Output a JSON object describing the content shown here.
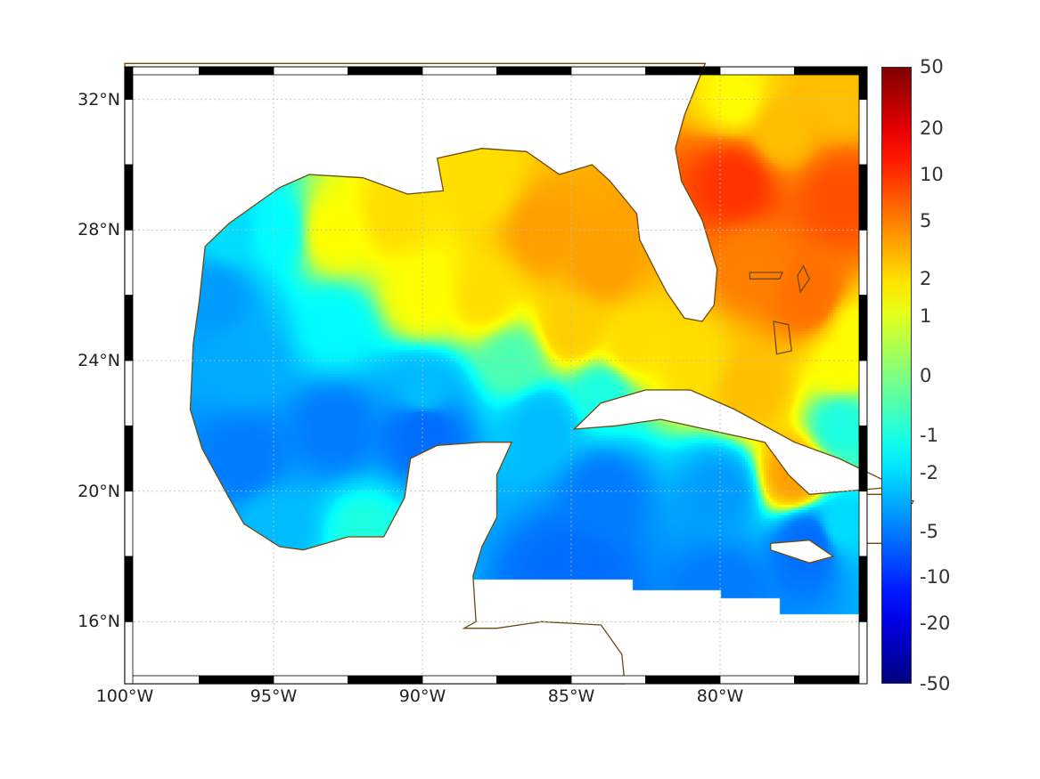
{
  "map": {
    "extent": {
      "lon_min": -100,
      "lon_max": -75.06,
      "lat_min": 14.1,
      "lat_max": 33.0
    },
    "lat_ticks": [
      {
        "value": 32,
        "label": "32°N"
      },
      {
        "value": 28,
        "label": "28°N"
      },
      {
        "value": 24,
        "label": "24°N"
      },
      {
        "value": 20,
        "label": "20°N"
      },
      {
        "value": 16,
        "label": "16°N"
      }
    ],
    "lon_ticks": [
      {
        "value": -100,
        "label": "100°W"
      },
      {
        "value": -95,
        "label": "95°W"
      },
      {
        "value": -90,
        "label": "90°W"
      },
      {
        "value": -85,
        "label": "85°W"
      },
      {
        "value": -80,
        "label": "80°W"
      }
    ],
    "coastline_color": "#6b4a12",
    "field_samples": [
      [
        -76,
        29,
        8
      ],
      [
        -78,
        31,
        3
      ],
      [
        -79.5,
        29.5,
        10
      ],
      [
        -77,
        26,
        6
      ],
      [
        -79,
        27,
        5
      ],
      [
        -76,
        32,
        3
      ],
      [
        -79.5,
        32,
        1.5
      ],
      [
        -86,
        28,
        4
      ],
      [
        -84,
        27,
        4
      ],
      [
        -88,
        29.5,
        2
      ],
      [
        -91,
        28.5,
        2
      ],
      [
        -93,
        28,
        1.5
      ],
      [
        -95,
        28,
        -1.5
      ],
      [
        -97,
        26,
        -4
      ],
      [
        -96,
        24,
        -3.5
      ],
      [
        -93,
        25,
        -1.5
      ],
      [
        -90,
        26,
        1.5
      ],
      [
        -88,
        26,
        2
      ],
      [
        -85,
        25,
        2.5
      ],
      [
        -83,
        24.5,
        2
      ],
      [
        -87,
        24,
        -0.5
      ],
      [
        -90,
        23,
        -3
      ],
      [
        -93,
        22,
        -5
      ],
      [
        -96,
        21,
        -5
      ],
      [
        -95,
        19,
        -3
      ],
      [
        -90,
        22,
        -6
      ],
      [
        -86,
        22,
        -3
      ],
      [
        -84,
        23,
        -1
      ],
      [
        -81,
        24,
        2
      ],
      [
        -79,
        23.2,
        3
      ],
      [
        -76,
        22,
        -1
      ],
      [
        -84,
        20,
        -5
      ],
      [
        -80,
        20,
        -4
      ],
      [
        -77,
        18.5,
        -6
      ],
      [
        -85,
        17.5,
        -6
      ],
      [
        -80,
        17,
        -5
      ],
      [
        -76,
        19,
        -2
      ],
      [
        -77.5,
        20.5,
        4
      ],
      [
        -76,
        24,
        1.5
      ],
      [
        -75.5,
        25,
        1.5
      ],
      [
        -96.5,
        28,
        -2
      ],
      [
        -92,
        18.8,
        -1
      ]
    ]
  },
  "colorbar": {
    "ticks": [
      "50",
      "20",
      "10",
      "5",
      "2",
      "1",
      "0",
      "-1",
      "-2",
      "-5",
      "-10",
      "-20",
      "-50"
    ]
  }
}
